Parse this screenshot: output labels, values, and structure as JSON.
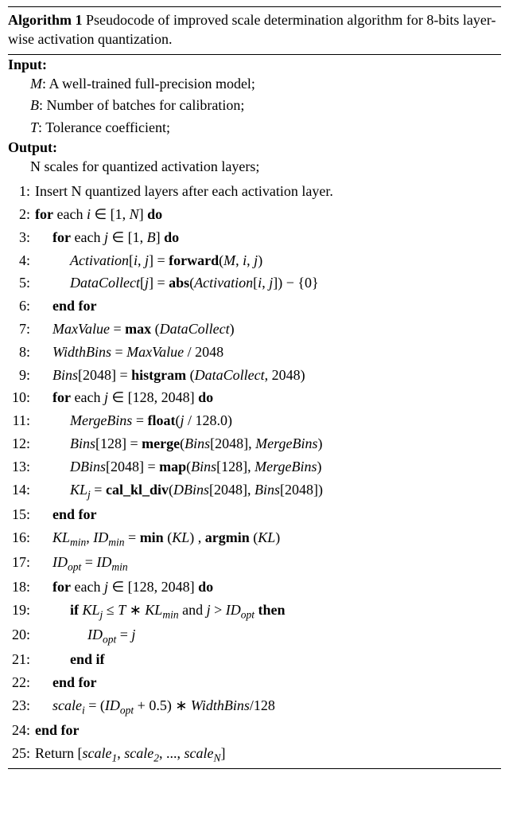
{
  "title_prefix": "Algorithm 1",
  "title_rest": " Pseudocode of improved scale determination algorithm for 8-bits layer-wise activation quantization.",
  "input_label": "Input:",
  "input_lines": [
    "M: A well-trained full-precision model;",
    "B: Number of batches for calibration;",
    "T: Tolerance coefficient;"
  ],
  "output_label": "Output:",
  "output_line": "N scales for quantized activation layers;",
  "steps": [
    {
      "n": "1:",
      "indent": 1,
      "html": "Insert N quantized layers after each activation layer."
    },
    {
      "n": "2:",
      "indent": 1,
      "html": "<span class='kw'>for</span> each <span class='it'>i</span> ∈ [1, <span class='it'>N</span>] <span class='kw'>do</span>"
    },
    {
      "n": "3:",
      "indent": 2,
      "html": "<span class='kw'>for</span> each <span class='it'>j</span> ∈ [1, <span class='it'>B</span>] <span class='kw'>do</span>"
    },
    {
      "n": "4:",
      "indent": 3,
      "html": "<span class='it'>Activation</span>[<span class='it'>i</span>, <span class='it'>j</span>] = <span class='kw'>forward</span>(<span class='it'>M</span>, <span class='it'>i</span>, <span class='it'>j</span>)"
    },
    {
      "n": "5:",
      "indent": 3,
      "html": "<span class='it'>DataCollect</span>[<span class='it'>j</span>] = <span class='kw'>abs</span>(<span class='it'>Activation</span>[<span class='it'>i</span>, <span class='it'>j</span>]) − {0}"
    },
    {
      "n": "6:",
      "indent": 2,
      "html": "<span class='kw'>end for</span>"
    },
    {
      "n": "7:",
      "indent": 2,
      "html": "<span class='it'>MaxValue</span> = <span class='kw'>max</span> (<span class='it'>DataCollect</span>)"
    },
    {
      "n": "8:",
      "indent": 2,
      "html": "<span class='it'>WidthBins</span> = <span class='it'>MaxValue</span> / 2048"
    },
    {
      "n": "9:",
      "indent": 2,
      "html": "<span class='it'>Bins</span>[2048] = <span class='kw'>histgram</span> (<span class='it'>DataCollect</span>, 2048)"
    },
    {
      "n": "10:",
      "indent": 2,
      "html": "<span class='kw'>for</span> each <span class='it'>j</span> ∈ [128, 2048] <span class='kw'>do</span>"
    },
    {
      "n": "11:",
      "indent": 3,
      "html": "<span class='it'>MergeBins</span> = <span class='kw'>float</span>(<span class='it'>j</span> / 128.0)"
    },
    {
      "n": "12:",
      "indent": 3,
      "html": "<span class='it'>Bins</span>[128] = <span class='kw'>merge</span>(<span class='it'>Bins</span>[2048], <span class='it'>MergeBins</span>)"
    },
    {
      "n": "13:",
      "indent": 3,
      "html": "<span class='it'>DBins</span>[2048] = <span class='kw'>map</span>(<span class='it'>Bins</span>[128], <span class='it'>MergeBins</span>)"
    },
    {
      "n": "14:",
      "indent": 3,
      "html": "<span class='it'>KL</span><span class='sub'>j</span> = <span class='kw'>cal_kl_div</span>(<span class='it'>DBins</span>[2048], <span class='it'>Bins</span>[2048])"
    },
    {
      "n": "15:",
      "indent": 2,
      "html": "<span class='kw'>end for</span>"
    },
    {
      "n": "16:",
      "indent": 2,
      "html": "<span class='it'>KL</span><span class='sub'>min</span>, <span class='it'>ID</span><span class='sub'>min</span> = <span class='kw'>min</span> (<span class='it'>KL</span>) , <span class='kw'>argmin</span> (<span class='it'>KL</span>)"
    },
    {
      "n": "17:",
      "indent": 2,
      "html": "<span class='it'>ID</span><span class='sub'>opt</span> = <span class='it'>ID</span><span class='sub'>min</span>"
    },
    {
      "n": "18:",
      "indent": 2,
      "html": "<span class='kw'>for</span> each <span class='it'>j</span> ∈ [128, 2048] <span class='kw'>do</span>"
    },
    {
      "n": "19:",
      "indent": 3,
      "html": "<span class='kw'>if</span> <span class='it'>KL</span><span class='sub'>j</span> ≤ <span class='it'>T</span> ∗ <span class='it'>KL</span><span class='sub'>min</span> and <span class='it'>j</span> &gt; <span class='it'>ID</span><span class='sub'>opt</span> <span class='kw'>then</span>"
    },
    {
      "n": "20:",
      "indent": 4,
      "html": "<span class='it'>ID</span><span class='sub'>opt</span> = <span class='it'>j</span>"
    },
    {
      "n": "21:",
      "indent": 3,
      "html": "<span class='kw'>end if</span>"
    },
    {
      "n": "22:",
      "indent": 2,
      "html": "<span class='kw'>end for</span>"
    },
    {
      "n": "23:",
      "indent": 2,
      "html": "<span class='it'>scale</span><span class='sub'>i</span> = (<span class='it'>ID</span><span class='sub'>opt</span> + 0.5) ∗ <span class='it'>WidthBins</span>/128"
    },
    {
      "n": "24:",
      "indent": 1,
      "html": "<span class='kw'>end for</span>"
    },
    {
      "n": "25:",
      "indent": 1,
      "html": "Return [<span class='it'>scale</span><span class='sub'>1</span>, <span class='it'>scale</span><span class='sub'>2</span>, ..., <span class='it'>scale</span><span class='sub'>N</span>]"
    }
  ]
}
